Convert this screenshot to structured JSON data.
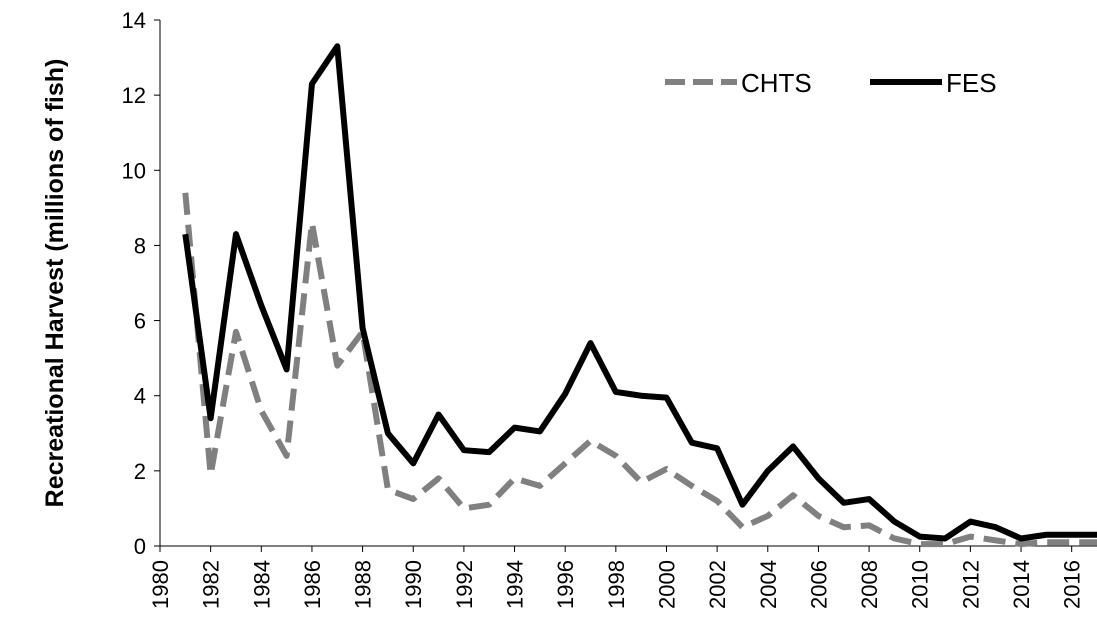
{
  "chart_data": {
    "type": "line",
    "y_label": "Recreational Harvest (millions of fish)",
    "x": [
      1981,
      1982,
      1983,
      1984,
      1985,
      1986,
      1987,
      1988,
      1989,
      1990,
      1991,
      1992,
      1993,
      1994,
      1995,
      1996,
      1997,
      1998,
      1999,
      2000,
      2001,
      2002,
      2003,
      2004,
      2005,
      2006,
      2007,
      2008,
      2009,
      2010,
      2011,
      2012,
      2013,
      2014,
      2015,
      2016,
      2017
    ],
    "series": [
      {
        "name": "CHTS",
        "color": "#808080",
        "dashed": true,
        "values": [
          9.4,
          1.9,
          5.7,
          3.6,
          2.4,
          8.6,
          4.8,
          5.7,
          1.5,
          1.25,
          1.8,
          1.0,
          1.1,
          1.8,
          1.6,
          2.2,
          2.8,
          2.4,
          1.7,
          2.05,
          1.6,
          1.2,
          0.5,
          0.8,
          1.35,
          0.8,
          0.5,
          0.55,
          0.2,
          0.05,
          0.05,
          0.25,
          0.15,
          0.05,
          0.1,
          0.1,
          0.1
        ]
      },
      {
        "name": "FES",
        "color": "#000000",
        "dashed": false,
        "values": [
          8.3,
          3.4,
          8.3,
          6.4,
          4.7,
          12.3,
          13.3,
          5.8,
          3.0,
          2.2,
          3.5,
          2.55,
          2.5,
          3.15,
          3.05,
          4.05,
          5.4,
          4.1,
          4.0,
          3.95,
          2.75,
          2.6,
          1.1,
          2.0,
          2.65,
          1.8,
          1.15,
          1.25,
          0.65,
          0.25,
          0.2,
          0.65,
          0.5,
          0.2,
          0.3,
          0.3,
          0.3
        ]
      }
    ],
    "xlim": [
      1980,
      2017
    ],
    "xticks": [
      1980,
      1982,
      1984,
      1986,
      1988,
      1990,
      1992,
      1994,
      1996,
      1998,
      2000,
      2002,
      2004,
      2006,
      2008,
      2010,
      2012,
      2014,
      2016
    ],
    "ylim": [
      0,
      14
    ],
    "yticks": [
      0,
      2,
      4,
      6,
      8,
      10,
      12,
      14
    ],
    "legend": "top-right"
  }
}
